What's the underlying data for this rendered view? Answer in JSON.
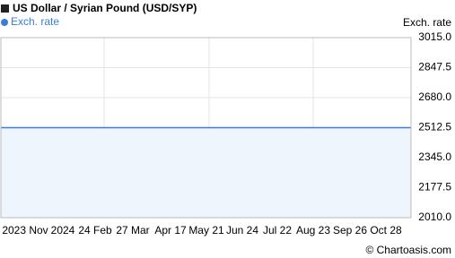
{
  "chart_data": {
    "type": "line",
    "title": "US Dollar / Syrian Pound (USD/SYP)",
    "y_axis_label": "Exch. rate",
    "footer": "© Chartoasis.com",
    "categories": [
      "2023 Nov",
      "2024",
      "24 Feb",
      "27 Mar",
      "Apr 17",
      "May 21",
      "Jun 24",
      "Jul 22",
      "Aug 23",
      "Sep 26",
      "Oct 28"
    ],
    "series": [
      {
        "name": "Exch. rate",
        "color": "#3b7dd8",
        "area_color": "#eef5fd",
        "values": [
          2512.5,
          2512.5,
          2512.5,
          2512.5,
          2512.5,
          2512.5,
          2512.5,
          2512.5,
          2512.5,
          2512.5,
          2512.5
        ]
      }
    ],
    "ylim": [
      2010,
      3015
    ],
    "yticks": [
      {
        "value": 2010,
        "label": "2010.0"
      },
      2177.5,
      {
        "value": 2345,
        "label": "2345.0"
      },
      2512.5,
      {
        "value": 2680,
        "label": "2680.0"
      },
      2847.5,
      {
        "value": 3015,
        "label": "3015.0"
      }
    ],
    "grid": true
  }
}
